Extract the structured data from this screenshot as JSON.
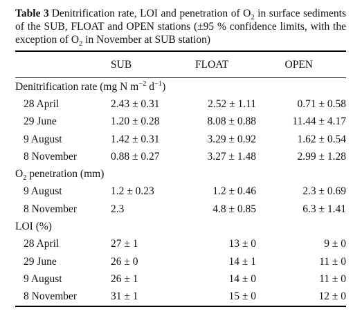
{
  "caption": {
    "label": "Table 3",
    "text": [
      "Denitrification rate, LOI and penetration of O",
      {
        "sub": "2"
      },
      " in surface sediments of the SUB, FLOAT and OPEN stations (±95 % confidence limits, with the exception of O",
      {
        "sub": "2"
      },
      " in November at SUB station)"
    ]
  },
  "table": {
    "columns": [
      "SUB",
      "FLOAT",
      "OPEN"
    ],
    "sections": [
      {
        "name": [
          "Denitrification rate (mg N m",
          {
            "sup": "−2"
          },
          " d",
          {
            "sup": "−1"
          },
          ")"
        ],
        "rows": [
          {
            "label": "28 April",
            "cells": [
              "2.43 ± 0.31",
              "2.52 ± 1.11",
              "0.71 ± 0.58"
            ]
          },
          {
            "label": "29 June",
            "cells": [
              "1.20 ± 0.28",
              "8.08 ± 0.88",
              "11.44 ± 4.17"
            ]
          },
          {
            "label": "9 August",
            "cells": [
              "1.42 ± 0.31",
              "3.29 ± 0.92",
              "1.62 ± 0.54"
            ]
          },
          {
            "label": "8 November",
            "cells": [
              "0.88 ± 0.27",
              "3.27 ± 1.48",
              "2.99 ± 1.28"
            ]
          }
        ]
      },
      {
        "name": [
          "O",
          {
            "sub": "2"
          },
          " penetration (mm)"
        ],
        "rows": [
          {
            "label": "9 August",
            "cells": [
              "1.2 ± 0.23",
              "1.2 ± 0.46",
              "2.3 ± 0.69"
            ]
          },
          {
            "label": "8 November",
            "cells": [
              "2.3",
              "4.8 ± 0.85",
              "6.3 ± 1.41"
            ]
          }
        ]
      },
      {
        "name": [
          "LOI (%)"
        ],
        "rows": [
          {
            "label": "28 April",
            "cells": [
              "27 ± 1",
              "13 ± 0",
              "9 ± 0"
            ]
          },
          {
            "label": "29 June",
            "cells": [
              "26 ± 0",
              "14 ± 1",
              "11 ± 0"
            ]
          },
          {
            "label": "9 August",
            "cells": [
              "26 ± 1",
              "14 ± 0",
              "11 ± 0"
            ]
          },
          {
            "label": "8 November",
            "cells": [
              "31 ± 1",
              "15 ± 0",
              "12 ± 0"
            ]
          }
        ]
      }
    ]
  }
}
